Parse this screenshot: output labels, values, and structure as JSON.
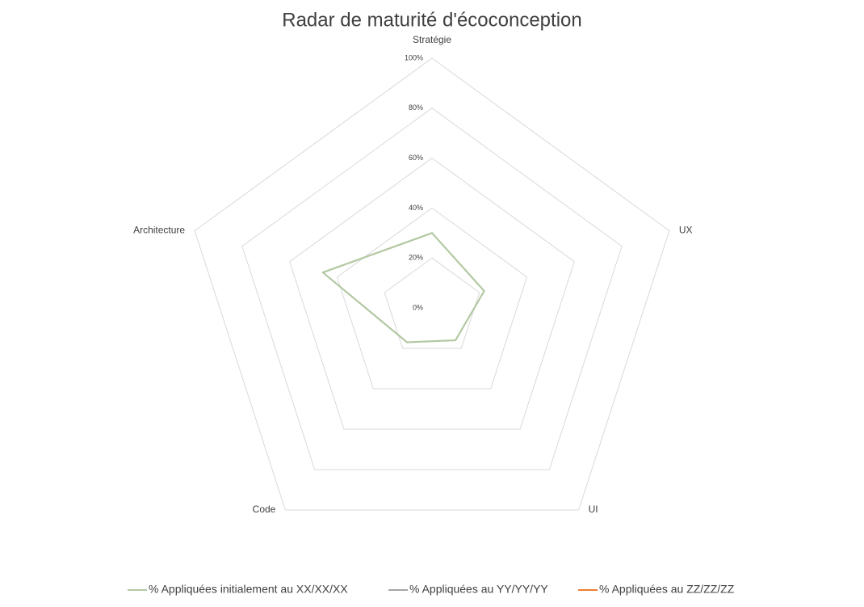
{
  "chart_data": {
    "type": "radar",
    "title": "Radar de maturité d'écoconception",
    "categories": [
      "Stratégie",
      "UX",
      "UI",
      "Code",
      "Architecture"
    ],
    "series": [
      {
        "name": "% Appliquées initialement au XX/XX/XX",
        "color": "#b4c8a3",
        "values": [
          30,
          22,
          16,
          17,
          46
        ]
      },
      {
        "name": "% Appliquées au YY/YY/YY",
        "color": "#a5a5a5",
        "values": [
          null,
          null,
          null,
          null,
          null
        ]
      },
      {
        "name": "% Appliquées au ZZ/ZZ/ZZ",
        "color": "#ed7d31",
        "values": [
          null,
          null,
          null,
          null,
          null
        ]
      }
    ],
    "ylim": [
      0,
      100
    ],
    "yticks": [
      {
        "value": 0,
        "label": "0%"
      },
      {
        "value": 20,
        "label": "20%"
      },
      {
        "value": 40,
        "label": "40%"
      },
      {
        "value": 60,
        "label": "60%"
      },
      {
        "value": 80,
        "label": "80%"
      },
      {
        "value": 100,
        "label": "100%"
      }
    ],
    "grid": true,
    "legend": "bottom"
  }
}
